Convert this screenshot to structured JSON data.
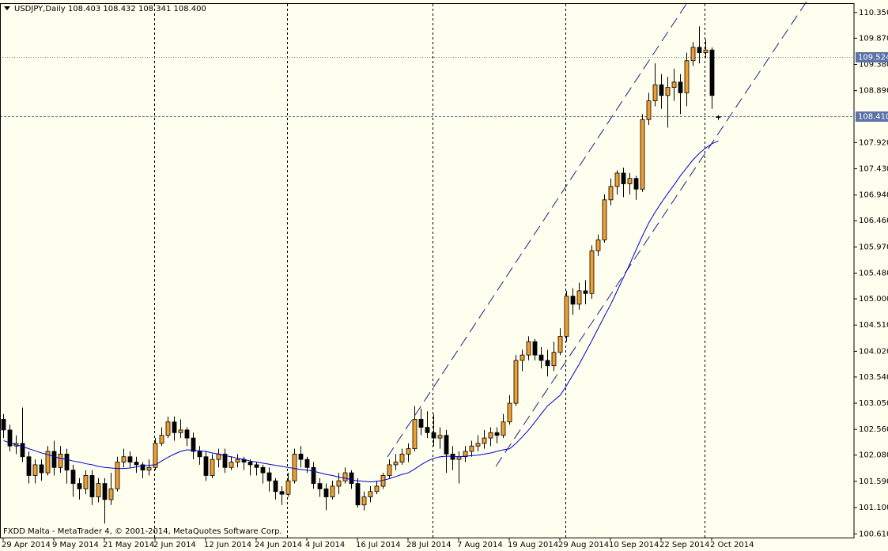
{
  "chart_data": {
    "type": "candlestick",
    "title": "USDJPY,Daily  108.403 108.432 108.341 108.400",
    "footer": "FXDD Malta - MetaTrader 4, © 2001-2014, MetaQuotes Software Corp.",
    "categories": [
      "29 Apr 2014",
      null,
      null,
      null,
      null,
      null,
      null,
      null,
      "9 May 2014",
      null,
      null,
      null,
      null,
      null,
      null,
      null,
      "21 May 2014",
      null,
      null,
      null,
      null,
      null,
      null,
      null,
      "2 Jun 2014",
      null,
      null,
      null,
      null,
      null,
      null,
      null,
      "12 Jun 2014",
      null,
      null,
      null,
      null,
      null,
      null,
      null,
      "24 Jun 2014",
      null,
      null,
      null,
      null,
      null,
      null,
      null,
      "4 Jul 2014",
      null,
      null,
      null,
      null,
      null,
      null,
      null,
      "16 Jul 2014",
      null,
      null,
      null,
      null,
      null,
      null,
      null,
      "28 Jul 2014",
      null,
      null,
      null,
      null,
      null,
      null,
      null,
      "7 Aug 2014",
      null,
      null,
      null,
      null,
      null,
      null,
      null,
      "19 Aug 2014",
      null,
      null,
      null,
      null,
      null,
      null,
      null,
      "29 Aug 2014",
      null,
      null,
      null,
      null,
      null,
      null,
      null,
      "10 Sep 2014",
      null,
      null,
      null,
      null,
      null,
      null,
      null,
      "22 Sep 2014",
      null,
      null,
      null,
      null,
      null,
      null,
      null,
      "2 Oct 2014",
      null
    ],
    "open": [
      102.75,
      102.55,
      102.25,
      102.3,
      102.05,
      101.7,
      101.9,
      101.75,
      102.15,
      101.85,
      102.1,
      101.8,
      101.55,
      101.45,
      101.7,
      101.3,
      101.55,
      101.25,
      101.45,
      101.95,
      102.05,
      101.95,
      101.9,
      101.8,
      101.85,
      102.3,
      102.45,
      102.7,
      102.5,
      102.55,
      102.4,
      102.15,
      102.05,
      101.7,
      102.0,
      102.1,
      101.85,
      101.95,
      102.0,
      101.95,
      101.9,
      101.85,
      101.75,
      101.6,
      101.4,
      101.35,
      101.6,
      102.1,
      102.0,
      101.85,
      101.55,
      101.45,
      101.3,
      101.5,
      101.6,
      101.75,
      101.55,
      101.15,
      101.3,
      101.4,
      101.5,
      101.7,
      101.9,
      101.95,
      102.1,
      102.2,
      102.75,
      102.6,
      102.5,
      102.4,
      102.45,
      102.1,
      102.0,
      102.05,
      102.15,
      102.25,
      102.3,
      102.4,
      102.5,
      102.45,
      102.7,
      103.05,
      103.85,
      103.95,
      104.2,
      103.95,
      103.85,
      103.75,
      104.0,
      104.3,
      105.05,
      104.9,
      105.15,
      105.1,
      105.9,
      106.1,
      106.85,
      107.1,
      107.35,
      107.15,
      107.25,
      107.05,
      108.35,
      108.7,
      109.0,
      108.8,
      108.95,
      109.05,
      108.85,
      109.45,
      109.7,
      109.6,
      109.65,
      108.403
    ],
    "high": [
      102.85,
      102.65,
      102.45,
      102.97,
      102.15,
      102.0,
      102.0,
      102.25,
      102.35,
      102.25,
      102.2,
      101.9,
      101.65,
      101.8,
      101.8,
      101.65,
      101.65,
      101.75,
      102.05,
      102.2,
      102.15,
      102.05,
      101.95,
      102.0,
      102.4,
      102.6,
      102.8,
      102.8,
      102.75,
      102.6,
      102.5,
      102.25,
      102.15,
      102.1,
      102.2,
      102.2,
      102.05,
      102.1,
      102.05,
      102.0,
      101.95,
      101.9,
      101.85,
      101.65,
      101.5,
      101.75,
      102.2,
      102.25,
      102.05,
      101.95,
      101.65,
      101.55,
      101.6,
      101.75,
      101.85,
      101.8,
      101.65,
      101.4,
      101.5,
      101.6,
      101.75,
      102.0,
      102.1,
      102.2,
      102.3,
      103.0,
      102.95,
      102.9,
      102.85,
      102.6,
      102.55,
      102.25,
      102.15,
      102.25,
      102.35,
      102.45,
      102.55,
      102.6,
      102.6,
      102.85,
      103.2,
      103.95,
      104.05,
      104.3,
      104.25,
      104.1,
      104.05,
      104.2,
      104.45,
      105.15,
      105.2,
      105.3,
      105.35,
      106.0,
      106.2,
      106.95,
      107.25,
      107.4,
      107.45,
      107.35,
      107.3,
      108.45,
      108.85,
      109.4,
      109.2,
      109.15,
      109.3,
      109.2,
      109.6,
      109.8,
      110.09,
      109.85,
      109.7,
      108.432
    ],
    "low": [
      102.4,
      102.15,
      102.1,
      101.95,
      101.55,
      101.55,
      101.6,
      101.7,
      101.7,
      101.75,
      101.55,
      101.3,
      101.25,
      101.35,
      101.15,
      101.2,
      100.8,
      101.15,
      101.4,
      101.85,
      101.85,
      101.75,
      101.65,
      101.7,
      101.8,
      102.25,
      102.4,
      102.35,
      102.4,
      102.25,
      102.0,
      101.9,
      101.6,
      101.65,
      101.85,
      101.75,
      101.8,
      101.85,
      101.8,
      101.7,
      101.7,
      101.55,
      101.4,
      101.25,
      101.15,
      101.3,
      101.55,
      101.85,
      101.75,
      101.45,
      101.3,
      101.05,
      101.25,
      101.35,
      101.55,
      101.45,
      101.1,
      101.05,
      101.2,
      101.35,
      101.45,
      101.65,
      101.8,
      101.9,
      101.95,
      102.15,
      102.45,
      102.4,
      102.25,
      102.2,
      101.75,
      101.8,
      101.55,
      101.95,
      102.05,
      102.15,
      102.2,
      102.25,
      102.3,
      102.4,
      102.65,
      103.0,
      103.65,
      103.85,
      103.85,
      103.7,
      103.55,
      103.65,
      103.95,
      104.2,
      104.7,
      104.8,
      104.9,
      105.0,
      105.8,
      106.05,
      106.75,
      106.95,
      106.9,
      106.95,
      106.85,
      107.0,
      108.25,
      108.6,
      108.55,
      108.2,
      108.7,
      108.45,
      108.6,
      109.35,
      109.4,
      109.5,
      108.55,
      108.341
    ],
    "close": [
      102.55,
      102.25,
      102.3,
      102.05,
      101.7,
      101.9,
      101.75,
      102.15,
      101.85,
      102.1,
      101.8,
      101.55,
      101.45,
      101.7,
      101.3,
      101.55,
      101.25,
      101.45,
      101.95,
      102.05,
      101.95,
      101.9,
      101.8,
      101.85,
      102.3,
      102.45,
      102.7,
      102.5,
      102.55,
      102.4,
      102.15,
      102.05,
      101.7,
      102.0,
      102.1,
      101.85,
      101.95,
      102.0,
      101.95,
      101.9,
      101.85,
      101.75,
      101.6,
      101.4,
      101.35,
      101.6,
      102.1,
      102.0,
      101.85,
      101.55,
      101.45,
      101.3,
      101.5,
      101.6,
      101.75,
      101.55,
      101.15,
      101.3,
      101.4,
      101.5,
      101.7,
      101.9,
      101.95,
      102.1,
      102.2,
      102.75,
      102.6,
      102.5,
      102.4,
      102.45,
      102.1,
      102.0,
      102.05,
      102.15,
      102.25,
      102.3,
      102.4,
      102.5,
      102.45,
      102.7,
      103.05,
      103.85,
      103.95,
      104.2,
      103.95,
      103.85,
      103.75,
      104.0,
      104.3,
      105.05,
      104.9,
      105.15,
      105.1,
      105.9,
      106.1,
      106.85,
      107.1,
      107.35,
      107.15,
      107.25,
      107.05,
      108.35,
      108.7,
      109.0,
      108.8,
      108.95,
      109.05,
      108.85,
      109.45,
      109.7,
      109.6,
      109.65,
      108.8,
      108.4
    ],
    "ma_values": [
      102.35,
      102.31,
      102.27,
      102.24,
      102.2,
      102.16,
      102.12,
      102.09,
      102.05,
      102.02,
      102.0,
      101.97,
      101.95,
      101.92,
      101.9,
      101.87,
      101.85,
      101.84,
      101.83,
      101.83,
      101.84,
      101.86,
      101.88,
      101.89,
      101.9,
      101.97,
      102.04,
      102.1,
      102.15,
      102.18,
      102.17,
      102.16,
      102.15,
      102.12,
      102.1,
      102.07,
      102.05,
      102.02,
      102.0,
      101.97,
      101.95,
      101.93,
      101.91,
      101.89,
      101.87,
      101.85,
      101.83,
      101.81,
      101.8,
      101.78,
      101.75,
      101.72,
      101.7,
      101.67,
      101.65,
      101.62,
      101.6,
      101.59,
      101.58,
      101.59,
      101.61,
      101.64,
      101.68,
      101.72,
      101.75,
      101.82,
      101.9,
      101.97,
      102.02,
      102.05,
      102.06,
      102.06,
      102.05,
      102.06,
      102.07,
      102.08,
      102.1,
      102.12,
      102.15,
      102.18,
      102.2,
      102.3,
      102.42,
      102.55,
      102.7,
      102.85,
      103.0,
      103.1,
      103.2,
      103.38,
      103.58,
      103.78,
      104.0,
      104.22,
      104.45,
      104.68,
      104.9,
      105.15,
      105.4,
      105.65,
      105.92,
      106.18,
      106.42,
      106.62,
      106.8,
      106.97,
      107.13,
      107.3,
      107.45,
      107.6,
      107.72,
      107.82,
      107.9,
      107.95
    ],
    "up_color": "#f0a030",
    "down_color": "#000000",
    "ma_color": "#0000cc",
    "background": "#fffff0",
    "ylim": [
      100.54,
      110.51
    ],
    "yticks": [
      {
        "value": 110.35,
        "label": "110.350"
      },
      {
        "value": 109.87,
        "label": "109.870"
      },
      {
        "value": 109.38,
        "label": "109.380"
      },
      {
        "value": 108.89,
        "label": "108.890"
      },
      {
        "value": 107.92,
        "label": "107.920"
      },
      {
        "value": 107.43,
        "label": "107.430"
      },
      {
        "value": 106.94,
        "label": "106.940"
      },
      {
        "value": 106.46,
        "label": "106.460"
      },
      {
        "value": 105.97,
        "label": "105.970"
      },
      {
        "value": 105.48,
        "label": "105.480"
      },
      {
        "value": 105.0,
        "label": "105.000"
      },
      {
        "value": 104.51,
        "label": "104.510"
      },
      {
        "value": 104.02,
        "label": "104.020"
      },
      {
        "value": 103.54,
        "label": "103.540"
      },
      {
        "value": 103.05,
        "label": "103.050"
      },
      {
        "value": 102.56,
        "label": "102.560"
      },
      {
        "value": 102.08,
        "label": "102.080"
      },
      {
        "value": 101.59,
        "label": "101.590"
      },
      {
        "value": 101.1,
        "label": "101.100"
      },
      {
        "value": 100.61,
        "label": "100.610"
      }
    ],
    "price_lines": [
      {
        "value": 109.524,
        "label": "109.524"
      },
      {
        "value": 108.41,
        "label": "108.410"
      }
    ]
  }
}
